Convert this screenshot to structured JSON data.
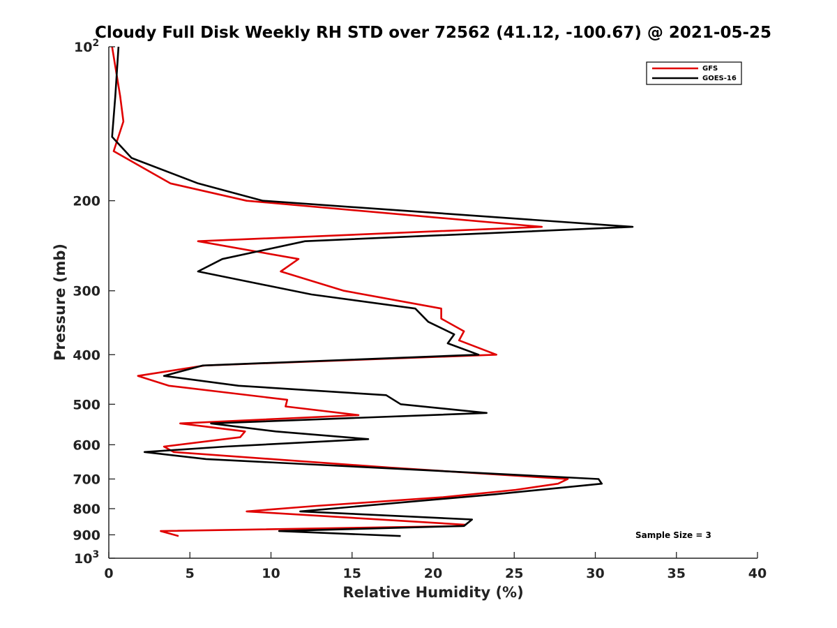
{
  "chart_data": {
    "type": "line",
    "title": "Cloudy Full Disk Weekly RH STD over 72562 (41.12, -100.67) @ 2021-05-25",
    "xlabel": "Relative Humidity (%)",
    "ylabel": "Pressure (mb)",
    "xlim": [
      0,
      40
    ],
    "ylim": [
      100,
      1000
    ],
    "yscale": "log",
    "y_inverted": true,
    "x_ticks": [
      0,
      5,
      10,
      15,
      20,
      25,
      30,
      35,
      40
    ],
    "x_tick_labels": [
      "0",
      "5",
      "10",
      "15",
      "20",
      "25",
      "30",
      "35",
      "40"
    ],
    "y_ticks": [
      100,
      200,
      300,
      400,
      500,
      600,
      700,
      800,
      900,
      1000
    ],
    "y_tick_labels": [
      "10^2",
      "200",
      "300",
      "400",
      "500",
      "600",
      "700",
      "800",
      "900",
      "10^3"
    ],
    "grid": false,
    "legend_position": "top-right",
    "annotation": "Sample Size = 3",
    "series": [
      {
        "name": "GFS",
        "color": "#e00000",
        "x": [
          0.2,
          0.7,
          0.9,
          0.3,
          3.8,
          8.5,
          26.7,
          5.5,
          11.7,
          10.6,
          14.5,
          20.5,
          20.5,
          21.9,
          21.6,
          23.9,
          5.9,
          1.8,
          3.7,
          11.0,
          10.9,
          15.4,
          4.4,
          8.4,
          8.1,
          3.4,
          4.0,
          17.3,
          28.3,
          27.7,
          25.1,
          20.6,
          12.8,
          8.5,
          22.0,
          21.8,
          3.2,
          4.3
        ],
        "y": [
          100,
          125,
          140,
          160,
          185,
          200,
          225,
          240,
          260,
          275,
          300,
          325,
          340,
          360,
          375,
          400,
          420,
          440,
          460,
          490,
          505,
          525,
          545,
          565,
          580,
          605,
          620,
          665,
          700,
          715,
          735,
          760,
          790,
          810,
          860,
          865,
          885,
          905
        ]
      },
      {
        "name": "GOES-16",
        "color": "#000000",
        "x": [
          0.6,
          0.4,
          0.2,
          1.4,
          5.5,
          9.5,
          32.3,
          12.1,
          7.0,
          5.5,
          12.5,
          18.9,
          19.7,
          21.3,
          20.9,
          22.8,
          5.8,
          3.4,
          8.0,
          17.1,
          18.0,
          23.3,
          6.3,
          10.3,
          16.0,
          7.2,
          2.2,
          6.0,
          30.2,
          30.4,
          23.8,
          11.8,
          22.4,
          21.9,
          10.5,
          18.0
        ],
        "y": [
          100,
          125,
          150,
          165,
          185,
          200,
          225,
          240,
          260,
          275,
          305,
          325,
          345,
          365,
          380,
          400,
          420,
          440,
          460,
          480,
          500,
          520,
          545,
          565,
          585,
          605,
          620,
          640,
          700,
          715,
          750,
          810,
          840,
          865,
          885,
          905
        ]
      }
    ]
  }
}
